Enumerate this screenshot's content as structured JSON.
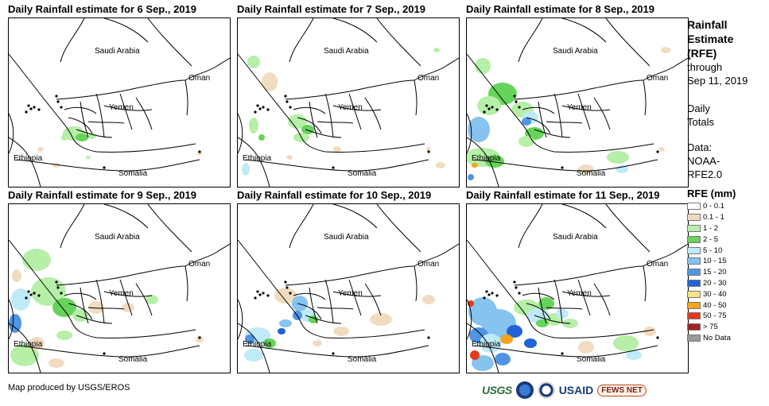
{
  "panels": [
    {
      "title": "Daily Rainfall estimate for 6 Sep., 2019",
      "key": "d6"
    },
    {
      "title": "Daily Rainfall estimate for 7 Sep., 2019",
      "key": "d7"
    },
    {
      "title": "Daily Rainfall estimate for 8 Sep., 2019",
      "key": "d8"
    },
    {
      "title": "Daily Rainfall estimate for 9 Sep., 2019",
      "key": "d9"
    },
    {
      "title": "Daily Rainfall estimate for 10 Sep., 2019",
      "key": "d10"
    },
    {
      "title": "Daily Rainfall estimate for 11 Sep., 2019",
      "key": "d11"
    }
  ],
  "map_labels": {
    "saudi_arabia": "Saudi Arabia",
    "oman": "Oman",
    "yemen": "Yemen",
    "ethiopia": "Ethiopia",
    "somalia": "Somalia"
  },
  "legend": {
    "title_line1": "Rainfall",
    "title_line2": "Estimate",
    "title_line3": "(RFE)",
    "through": "through",
    "date": "Sep 11, 2019",
    "daily": "Daily",
    "totals": "Totals",
    "data_label": "Data:",
    "data_source1": "NOAA-",
    "data_source2": "RFE2.0",
    "units": "RFE (mm)",
    "items": [
      {
        "label": "0 - 0.1",
        "color": "#ffffff"
      },
      {
        "label": "0.1 - 1",
        "color": "#f2dcc0"
      },
      {
        "label": "1 - 2",
        "color": "#b6efa8"
      },
      {
        "label": "2 - 5",
        "color": "#66d35a"
      },
      {
        "label": "5 - 10",
        "color": "#bfeaf7"
      },
      {
        "label": "10 - 15",
        "color": "#86c3ee"
      },
      {
        "label": "15 - 20",
        "color": "#4f95e4"
      },
      {
        "label": "20 - 30",
        "color": "#1f63d6"
      },
      {
        "label": "30 - 40",
        "color": "#f7e38a"
      },
      {
        "label": "40 - 50",
        "color": "#f5a31c"
      },
      {
        "label": "50 - 75",
        "color": "#e53a1a"
      },
      {
        "label": "> 75",
        "color": "#a32121"
      },
      {
        "label": "No Data",
        "color": "#9a9a9a"
      }
    ]
  },
  "footer": {
    "credit": "Map produced by USGS/EROS"
  },
  "logos": {
    "usgs": "USGS",
    "usaid": "USAID",
    "fews": "FEWS NET"
  }
}
